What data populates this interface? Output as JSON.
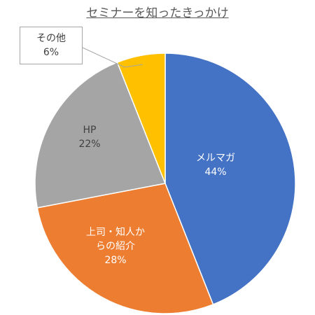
{
  "chart_data": {
    "type": "pie",
    "title": "セミナーを知ったきっかけ",
    "categories": [
      "メルマガ",
      "上司・知人からの紹介",
      "HP",
      "その他"
    ],
    "values": [
      44,
      28,
      22,
      6
    ],
    "value_labels": [
      "44%",
      "28%",
      "22%",
      "6%"
    ],
    "colors": [
      "#4472c4",
      "#ed7d31",
      "#a5a5a5",
      "#ffc000"
    ]
  }
}
